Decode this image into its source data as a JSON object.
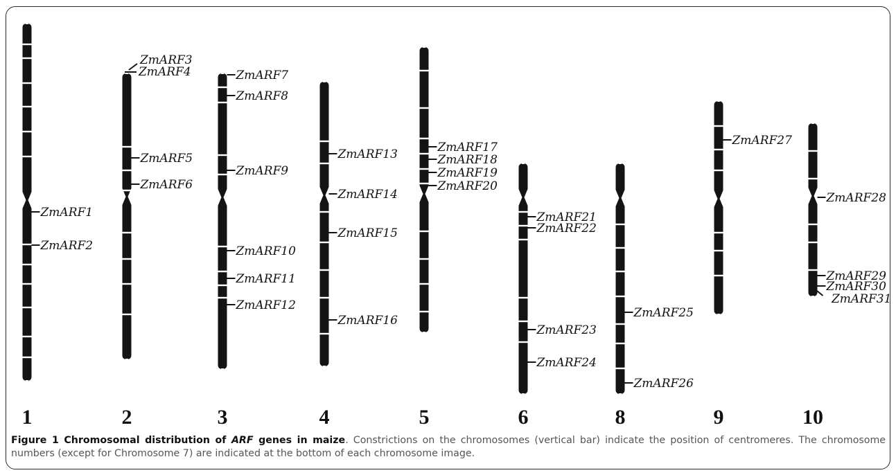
{
  "figure": {
    "caption_title_prefix": "Figure 1 Chromosomal distribution of ",
    "caption_title_italic": "ARF",
    "caption_title_suffix": " genes in maize",
    "caption_body": ". Constrictions on the chromosomes (vertical bar) indicate the position of centromeres. The chromosome numbers (except for Chromosome 7) are indicated at the bottom of each chromosome image."
  },
  "chromosomes": [
    {
      "number": "1",
      "genes": [
        "ZmARF1",
        "ZmARF2"
      ]
    },
    {
      "number": "2",
      "genes": [
        "ZmARF3",
        "ZmARF4",
        "ZmARF5",
        "ZmARF6"
      ]
    },
    {
      "number": "3",
      "genes": [
        "ZmARF7",
        "ZmARF8",
        "ZmARF9",
        "ZmARF10",
        "ZmARF11",
        "ZmARF12"
      ]
    },
    {
      "number": "4",
      "genes": [
        "ZmARF13",
        "ZmARF14",
        "ZmARF15",
        "ZmARF16"
      ]
    },
    {
      "number": "5",
      "genes": [
        "ZmARF17",
        "ZmARF18",
        "ZmARF19",
        "ZmARF20"
      ]
    },
    {
      "number": "6",
      "genes": [
        "ZmARF21",
        "ZmARF22",
        "ZmARF23",
        "ZmARF24"
      ]
    },
    {
      "number": "8",
      "genes": [
        "ZmARF25",
        "ZmARF26"
      ]
    },
    {
      "number": "9",
      "genes": [
        "ZmARF27"
      ]
    },
    {
      "number": "10",
      "genes": [
        "ZmARF28",
        "ZmARF29",
        "ZmARF30",
        "ZmARF31"
      ]
    }
  ],
  "colors": {
    "chromosome": "#141414",
    "band": "#ffffff",
    "text": "#111111",
    "caption": "#555555"
  }
}
